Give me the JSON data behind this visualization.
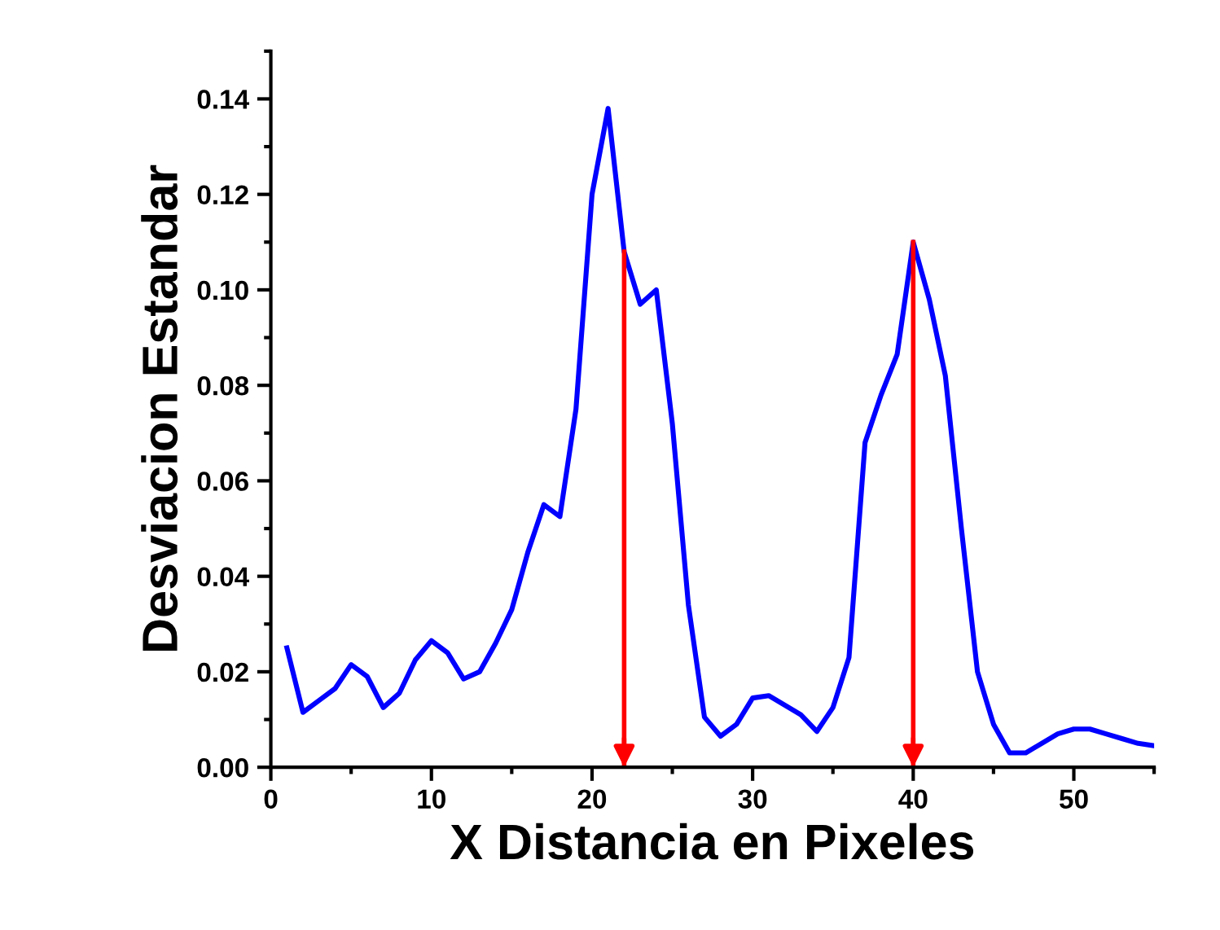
{
  "chart_data": {
    "type": "line",
    "xlabel": "X Distancia en Pixeles",
    "ylabel": "Desviacion Estandar",
    "x": [
      1,
      2,
      3,
      4,
      5,
      6,
      7,
      8,
      9,
      10,
      11,
      12,
      13,
      14,
      15,
      16,
      17,
      18,
      19,
      20,
      21,
      22,
      23,
      24,
      25,
      26,
      27,
      28,
      29,
      30,
      31,
      32,
      33,
      34,
      35,
      36,
      37,
      38,
      39,
      40,
      41,
      42,
      43,
      44,
      45,
      46,
      47,
      48,
      49,
      50,
      51,
      52,
      53,
      54,
      55
    ],
    "series": [
      {
        "color": "#0000ff",
        "values": [
          0.025,
          0.0115,
          0.014,
          0.0165,
          0.0215,
          0.019,
          0.0125,
          0.0155,
          0.0225,
          0.0265,
          0.024,
          0.0185,
          0.02,
          0.026,
          0.033,
          0.045,
          0.055,
          0.0525,
          0.075,
          0.12,
          0.138,
          0.108,
          0.097,
          0.1,
          0.072,
          0.034,
          0.0105,
          0.0065,
          0.009,
          0.0145,
          0.015,
          0.013,
          0.011,
          0.0075,
          0.0125,
          0.023,
          0.068,
          0.078,
          0.0865,
          0.11,
          0.098,
          0.082,
          0.05,
          0.02,
          0.009,
          0.003,
          0.003,
          0.005,
          0.007,
          0.008,
          0.008,
          0.007,
          0.006,
          0.005,
          0.0045
        ]
      }
    ],
    "ref_lines": [
      {
        "axis": "x",
        "value": 22,
        "color": "#ff0000",
        "line_style": "solid"
      },
      {
        "axis": "x",
        "value": 40,
        "color": "#ff0000",
        "line_style": "solid"
      }
    ],
    "xlim": [
      0,
      55
    ],
    "ylim": [
      0,
      0.15
    ],
    "xticks": [
      0,
      10,
      20,
      30,
      40,
      50
    ],
    "yticks": [
      {
        "value": 0,
        "label": "0.00"
      },
      {
        "value": 0.02,
        "label": "0.02"
      },
      {
        "value": 0.04,
        "label": "0.04"
      },
      {
        "value": 0.06,
        "label": "0.06"
      },
      {
        "value": 0.08,
        "label": "0.08"
      },
      {
        "value": 0.1,
        "label": "0.10"
      },
      {
        "value": 0.12,
        "label": "0.12"
      },
      {
        "value": 0.14,
        "label": "0.14"
      }
    ],
    "grid": false,
    "marker": "none",
    "line_style": "solid"
  }
}
